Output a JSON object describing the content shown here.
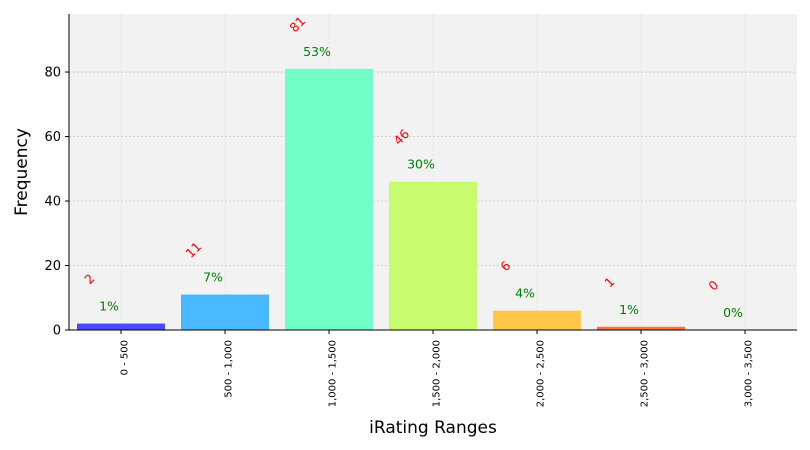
{
  "chart_data": {
    "type": "bar",
    "title": "",
    "xlabel": "iRating Ranges",
    "ylabel": "Frequency",
    "ylim": [
      0,
      98
    ],
    "yticks": [
      0,
      20,
      40,
      60,
      80
    ],
    "grid": true,
    "categories": [
      "0 - 500",
      "500 - 1,000",
      "1,000 - 1,500",
      "1,500 - 2,000",
      "2,000 - 2,500",
      "2,500 - 3,000",
      "3,000 - 3,500"
    ],
    "values": [
      2,
      11,
      81,
      46,
      6,
      1,
      0
    ],
    "count_labels": [
      "2",
      "11",
      "81",
      "46",
      "6",
      "1",
      "0"
    ],
    "percent_labels": [
      "1%",
      "7%",
      "53%",
      "30%",
      "4%",
      "1%",
      "0%"
    ],
    "colors": [
      "#4a4aff",
      "#4ab8ff",
      "#72fcc8",
      "#c8fc6e",
      "#ffc84a",
      "#ff7040",
      "#ff3030"
    ]
  }
}
